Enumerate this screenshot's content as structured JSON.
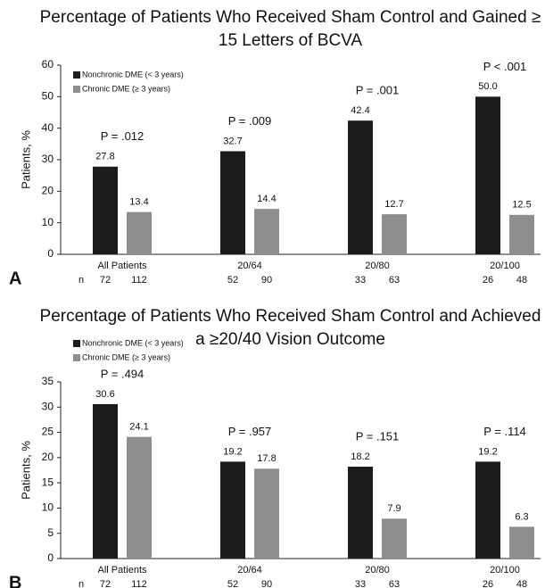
{
  "chart_data": [
    {
      "type": "bar",
      "panel": "A",
      "title": "Percentage of Patients Who Received Sham Control and Gained ≥ 15 Letters of BCVA",
      "ylabel": "Patients, %",
      "categories": [
        "All Patients",
        "20/64",
        "20/80",
        "20/100"
      ],
      "series": [
        {
          "name": "Nonchronic DME (< 3 years)",
          "color": "#1c1c1c",
          "values": [
            27.8,
            32.7,
            42.4,
            50
          ],
          "value_labels": [
            "27.8",
            "32.7",
            "42.4",
            "50.0"
          ],
          "n": [
            72,
            52,
            33,
            26
          ]
        },
        {
          "name": "Chronic DME (≥ 3 years)",
          "color": "#8e8e8e",
          "values": [
            13.4,
            14.4,
            12.7,
            12.5
          ],
          "n": [
            112,
            90,
            63,
            48
          ]
        }
      ],
      "annotations": [
        "P = .012",
        "P = .009",
        "P = .001",
        "P < .001"
      ],
      "n_label": "n",
      "ylim": [
        0,
        60
      ],
      "yticks": [
        0,
        10,
        20,
        30,
        40,
        50,
        60
      ],
      "legend": "upper left"
    },
    {
      "type": "bar",
      "panel": "B",
      "title": "Percentage of Patients Who Received Sham Control and Achieved a ≥20/40 Vision Outcome",
      "ylabel": "Patients, %",
      "categories": [
        "All Patients",
        "20/64",
        "20/80",
        "20/100"
      ],
      "series": [
        {
          "name": "Nonchronic DME (< 3 years)",
          "color": "#1c1c1c",
          "values": [
            30.6,
            19.2,
            18.2,
            19.2
          ],
          "n": [
            72,
            52,
            33,
            26
          ]
        },
        {
          "name": "Chronic DME (≥ 3 years)",
          "color": "#8e8e8e",
          "values": [
            24.1,
            17.8,
            7.9,
            6.3
          ],
          "n": [
            112,
            90,
            63,
            48
          ]
        }
      ],
      "annotations": [
        "P = .494",
        "P = .957",
        "P = .151",
        "P = .114"
      ],
      "n_label": "n",
      "ylim": [
        0,
        35
      ],
      "yticks": [
        0,
        5,
        10,
        15,
        20,
        25,
        30,
        35
      ],
      "legend": "upper left"
    }
  ]
}
